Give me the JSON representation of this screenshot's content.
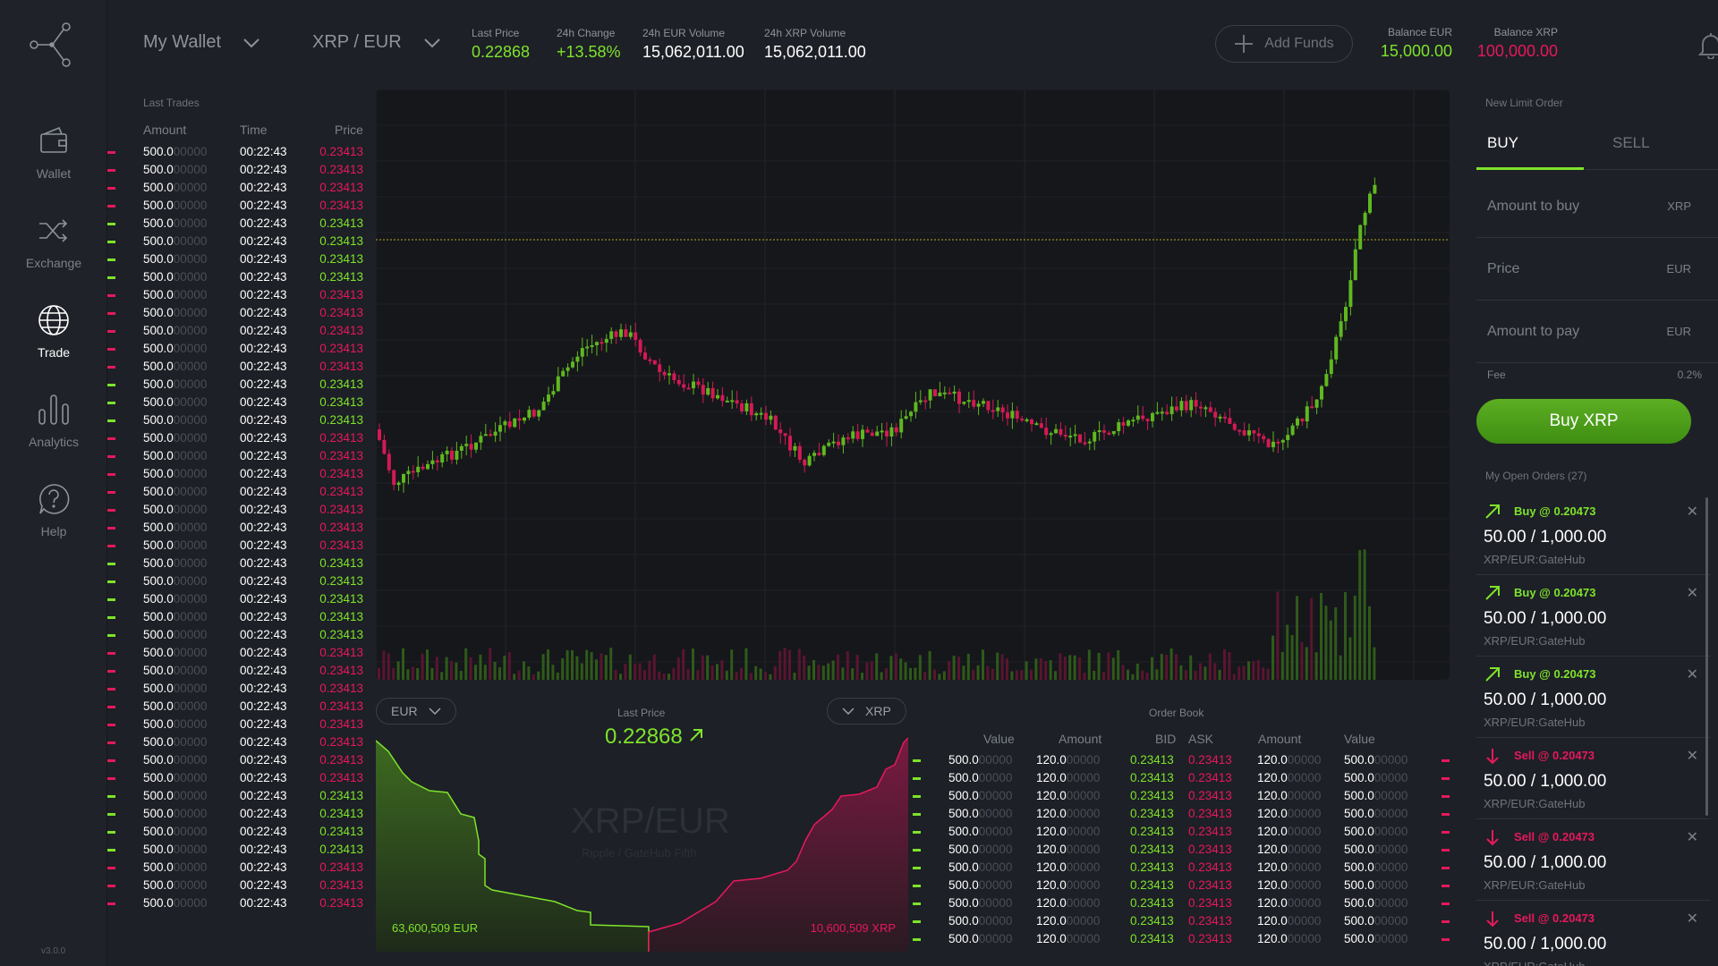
{
  "sidebar": {
    "items": [
      {
        "label": "Wallet",
        "icon": "wallet-icon"
      },
      {
        "label": "Exchange",
        "icon": "exchange-icon"
      },
      {
        "label": "Trade",
        "icon": "globe-icon",
        "active": true
      },
      {
        "label": "Analytics",
        "icon": "analytics-icon"
      },
      {
        "label": "Help",
        "icon": "help-icon"
      }
    ],
    "version": "v3.0.0"
  },
  "topbar": {
    "wallet_selector": "My Wallet",
    "pair_selector": "XRP / EUR",
    "stats": [
      {
        "label": "Last Price",
        "value": "0.22868",
        "color": "green"
      },
      {
        "label": "24h Change",
        "value": "+13.58%",
        "color": "green"
      },
      {
        "label": "24h EUR Volume",
        "value": "15,062,011.00",
        "color": "white"
      },
      {
        "label": "24h XRP Volume",
        "value": "15,062,011.00",
        "color": "white"
      }
    ],
    "add_funds": "Add Funds",
    "balance_eur_label": "Balance EUR",
    "balance_eur": "15,000.00",
    "balance_xrp_label": "Balance XRP",
    "balance_xrp": "100,000.00"
  },
  "colors": {
    "green": "#7ee32b",
    "red": "#e5195b",
    "background": "#1d2026",
    "chart_bg": "#15171b"
  },
  "last_trades": {
    "title": "Last Trades",
    "headers": [
      "Amount",
      "Time",
      "Price"
    ],
    "rows": [
      {
        "amount": "500.0",
        "amount_dim": "00000",
        "time": "00:22:43",
        "price": "0.23413",
        "side": "sell"
      },
      {
        "amount": "500.0",
        "amount_dim": "00000",
        "time": "00:22:43",
        "price": "0.23413",
        "side": "sell"
      },
      {
        "amount": "500.0",
        "amount_dim": "00000",
        "time": "00:22:43",
        "price": "0.23413",
        "side": "sell"
      },
      {
        "amount": "500.0",
        "amount_dim": "00000",
        "time": "00:22:43",
        "price": "0.23413",
        "side": "sell"
      },
      {
        "amount": "500.0",
        "amount_dim": "00000",
        "time": "00:22:43",
        "price": "0.23413",
        "side": "buy"
      },
      {
        "amount": "500.0",
        "amount_dim": "00000",
        "time": "00:22:43",
        "price": "0.23413",
        "side": "buy"
      },
      {
        "amount": "500.0",
        "amount_dim": "00000",
        "time": "00:22:43",
        "price": "0.23413",
        "side": "buy"
      },
      {
        "amount": "500.0",
        "amount_dim": "00000",
        "time": "00:22:43",
        "price": "0.23413",
        "side": "buy"
      },
      {
        "amount": "500.0",
        "amount_dim": "00000",
        "time": "00:22:43",
        "price": "0.23413",
        "side": "sell"
      },
      {
        "amount": "500.0",
        "amount_dim": "00000",
        "time": "00:22:43",
        "price": "0.23413",
        "side": "sell"
      },
      {
        "amount": "500.0",
        "amount_dim": "00000",
        "time": "00:22:43",
        "price": "0.23413",
        "side": "sell"
      },
      {
        "amount": "500.0",
        "amount_dim": "00000",
        "time": "00:22:43",
        "price": "0.23413",
        "side": "sell"
      },
      {
        "amount": "500.0",
        "amount_dim": "00000",
        "time": "00:22:43",
        "price": "0.23413",
        "side": "sell"
      },
      {
        "amount": "500.0",
        "amount_dim": "00000",
        "time": "00:22:43",
        "price": "0.23413",
        "side": "buy"
      },
      {
        "amount": "500.0",
        "amount_dim": "00000",
        "time": "00:22:43",
        "price": "0.23413",
        "side": "buy"
      },
      {
        "amount": "500.0",
        "amount_dim": "00000",
        "time": "00:22:43",
        "price": "0.23413",
        "side": "buy"
      },
      {
        "amount": "500.0",
        "amount_dim": "00000",
        "time": "00:22:43",
        "price": "0.23413",
        "side": "sell"
      },
      {
        "amount": "500.0",
        "amount_dim": "00000",
        "time": "00:22:43",
        "price": "0.23413",
        "side": "sell"
      },
      {
        "amount": "500.0",
        "amount_dim": "00000",
        "time": "00:22:43",
        "price": "0.23413",
        "side": "sell"
      },
      {
        "amount": "500.0",
        "amount_dim": "00000",
        "time": "00:22:43",
        "price": "0.23413",
        "side": "sell"
      },
      {
        "amount": "500.0",
        "amount_dim": "00000",
        "time": "00:22:43",
        "price": "0.23413",
        "side": "sell"
      },
      {
        "amount": "500.0",
        "amount_dim": "00000",
        "time": "00:22:43",
        "price": "0.23413",
        "side": "sell"
      },
      {
        "amount": "500.0",
        "amount_dim": "00000",
        "time": "00:22:43",
        "price": "0.23413",
        "side": "sell"
      },
      {
        "amount": "500.0",
        "amount_dim": "00000",
        "time": "00:22:43",
        "price": "0.23413",
        "side": "buy"
      },
      {
        "amount": "500.0",
        "amount_dim": "00000",
        "time": "00:22:43",
        "price": "0.23413",
        "side": "buy"
      },
      {
        "amount": "500.0",
        "amount_dim": "00000",
        "time": "00:22:43",
        "price": "0.23413",
        "side": "buy"
      },
      {
        "amount": "500.0",
        "amount_dim": "00000",
        "time": "00:22:43",
        "price": "0.23413",
        "side": "buy"
      },
      {
        "amount": "500.0",
        "amount_dim": "00000",
        "time": "00:22:43",
        "price": "0.23413",
        "side": "buy"
      },
      {
        "amount": "500.0",
        "amount_dim": "00000",
        "time": "00:22:43",
        "price": "0.23413",
        "side": "sell"
      },
      {
        "amount": "500.0",
        "amount_dim": "00000",
        "time": "00:22:43",
        "price": "0.23413",
        "side": "sell"
      },
      {
        "amount": "500.0",
        "amount_dim": "00000",
        "time": "00:22:43",
        "price": "0.23413",
        "side": "sell"
      },
      {
        "amount": "500.0",
        "amount_dim": "00000",
        "time": "00:22:43",
        "price": "0.23413",
        "side": "sell"
      },
      {
        "amount": "500.0",
        "amount_dim": "00000",
        "time": "00:22:43",
        "price": "0.23413",
        "side": "sell"
      },
      {
        "amount": "500.0",
        "amount_dim": "00000",
        "time": "00:22:43",
        "price": "0.23413",
        "side": "sell"
      },
      {
        "amount": "500.0",
        "amount_dim": "00000",
        "time": "00:22:43",
        "price": "0.23413",
        "side": "sell"
      },
      {
        "amount": "500.0",
        "amount_dim": "00000",
        "time": "00:22:43",
        "price": "0.23413",
        "side": "sell"
      },
      {
        "amount": "500.0",
        "amount_dim": "00000",
        "time": "00:22:43",
        "price": "0.23413",
        "side": "buy"
      },
      {
        "amount": "500.0",
        "amount_dim": "00000",
        "time": "00:22:43",
        "price": "0.23413",
        "side": "buy"
      },
      {
        "amount": "500.0",
        "amount_dim": "00000",
        "time": "00:22:43",
        "price": "0.23413",
        "side": "buy"
      },
      {
        "amount": "500.0",
        "amount_dim": "00000",
        "time": "00:22:43",
        "price": "0.23413",
        "side": "buy"
      },
      {
        "amount": "500.0",
        "amount_dim": "00000",
        "time": "00:22:43",
        "price": "0.23413",
        "side": "sell"
      },
      {
        "amount": "500.0",
        "amount_dim": "00000",
        "time": "00:22:43",
        "price": "0.23413",
        "side": "sell"
      },
      {
        "amount": "500.0",
        "amount_dim": "00000",
        "time": "00:22:43",
        "price": "0.23413",
        "side": "sell"
      }
    ]
  },
  "depth_chart": {
    "base_currency": "EUR",
    "quote_currency": "XRP",
    "last_price_label": "Last Price",
    "last_price": "0.22868",
    "watermark_pair": "XRP/EUR",
    "watermark_sub": "Ripple / GateHub Fifth",
    "bid_total": "63,600,509 EUR",
    "ask_total": "10,600,509 XRP"
  },
  "order_book": {
    "title": "Order Book",
    "headers": [
      "Value",
      "Amount",
      "BID",
      "ASK",
      "Amount",
      "Value"
    ],
    "rows": [
      {
        "value": "500.0",
        "value_dim": "00000",
        "amount": "120.0",
        "amount_dim": "00000",
        "bid": "0.23413",
        "ask": "0.23413",
        "ask_amount": "120.0",
        "ask_amount_dim": "00000",
        "ask_value": "500.0",
        "ask_value_dim": "00000"
      },
      {
        "value": "500.0",
        "value_dim": "00000",
        "amount": "120.0",
        "amount_dim": "00000",
        "bid": "0.23413",
        "ask": "0.23413",
        "ask_amount": "120.0",
        "ask_amount_dim": "00000",
        "ask_value": "500.0",
        "ask_value_dim": "00000"
      },
      {
        "value": "500.0",
        "value_dim": "00000",
        "amount": "120.0",
        "amount_dim": "00000",
        "bid": "0.23413",
        "ask": "0.23413",
        "ask_amount": "120.0",
        "ask_amount_dim": "00000",
        "ask_value": "500.0",
        "ask_value_dim": "00000"
      },
      {
        "value": "500.0",
        "value_dim": "00000",
        "amount": "120.0",
        "amount_dim": "00000",
        "bid": "0.23413",
        "ask": "0.23413",
        "ask_amount": "120.0",
        "ask_amount_dim": "00000",
        "ask_value": "500.0",
        "ask_value_dim": "00000"
      },
      {
        "value": "500.0",
        "value_dim": "00000",
        "amount": "120.0",
        "amount_dim": "00000",
        "bid": "0.23413",
        "ask": "0.23413",
        "ask_amount": "120.0",
        "ask_amount_dim": "00000",
        "ask_value": "500.0",
        "ask_value_dim": "00000"
      },
      {
        "value": "500.0",
        "value_dim": "00000",
        "amount": "120.0",
        "amount_dim": "00000",
        "bid": "0.23413",
        "ask": "0.23413",
        "ask_amount": "120.0",
        "ask_amount_dim": "00000",
        "ask_value": "500.0",
        "ask_value_dim": "00000"
      },
      {
        "value": "500.0",
        "value_dim": "00000",
        "amount": "120.0",
        "amount_dim": "00000",
        "bid": "0.23413",
        "ask": "0.23413",
        "ask_amount": "120.0",
        "ask_amount_dim": "00000",
        "ask_value": "500.0",
        "ask_value_dim": "00000"
      },
      {
        "value": "500.0",
        "value_dim": "00000",
        "amount": "120.0",
        "amount_dim": "00000",
        "bid": "0.23413",
        "ask": "0.23413",
        "ask_amount": "120.0",
        "ask_amount_dim": "00000",
        "ask_value": "500.0",
        "ask_value_dim": "00000"
      },
      {
        "value": "500.0",
        "value_dim": "00000",
        "amount": "120.0",
        "amount_dim": "00000",
        "bid": "0.23413",
        "ask": "0.23413",
        "ask_amount": "120.0",
        "ask_amount_dim": "00000",
        "ask_value": "500.0",
        "ask_value_dim": "00000"
      },
      {
        "value": "500.0",
        "value_dim": "00000",
        "amount": "120.0",
        "amount_dim": "00000",
        "bid": "0.23413",
        "ask": "0.23413",
        "ask_amount": "120.0",
        "ask_amount_dim": "00000",
        "ask_value": "500.0",
        "ask_value_dim": "00000"
      },
      {
        "value": "500.0",
        "value_dim": "00000",
        "amount": "120.0",
        "amount_dim": "00000",
        "bid": "0.23413",
        "ask": "0.23413",
        "ask_amount": "120.0",
        "ask_amount_dim": "00000",
        "ask_value": "500.0",
        "ask_value_dim": "00000"
      }
    ]
  },
  "order_form": {
    "title": "New Limit Order",
    "tabs": [
      "BUY",
      "SELL"
    ],
    "amount_to_buy_placeholder": "Amount to buy",
    "amount_to_buy_unit": "XRP",
    "price_placeholder": "Price",
    "price_unit": "EUR",
    "amount_to_pay_placeholder": "Amount to pay",
    "amount_to_pay_unit": "EUR",
    "fee_label": "Fee",
    "fee_value": "0.2%",
    "submit": "Buy XRP"
  },
  "open_orders": {
    "title": "My Open Orders (27)",
    "items": [
      {
        "side": "Buy @ 0.20473",
        "type": "buy",
        "qty": "50.00 / 1,000.00",
        "pair": "XRP/EUR:GateHub"
      },
      {
        "side": "Buy @ 0.20473",
        "type": "buy",
        "qty": "50.00 / 1,000.00",
        "pair": "XRP/EUR:GateHub"
      },
      {
        "side": "Buy @ 0.20473",
        "type": "buy",
        "qty": "50.00 / 1,000.00",
        "pair": "XRP/EUR:GateHub"
      },
      {
        "side": "Sell @ 0.20473",
        "type": "sell",
        "qty": "50.00 / 1,000.00",
        "pair": "XRP/EUR:GateHub"
      },
      {
        "side": "Sell @ 0.20473",
        "type": "sell",
        "qty": "50.00 / 1,000.00",
        "pair": "XRP/EUR:GateHub"
      },
      {
        "side": "Sell @ 0.20473",
        "type": "sell",
        "qty": "50.00 / 1,000.00",
        "pair": "XRP/EUR:GateHub"
      }
    ]
  }
}
